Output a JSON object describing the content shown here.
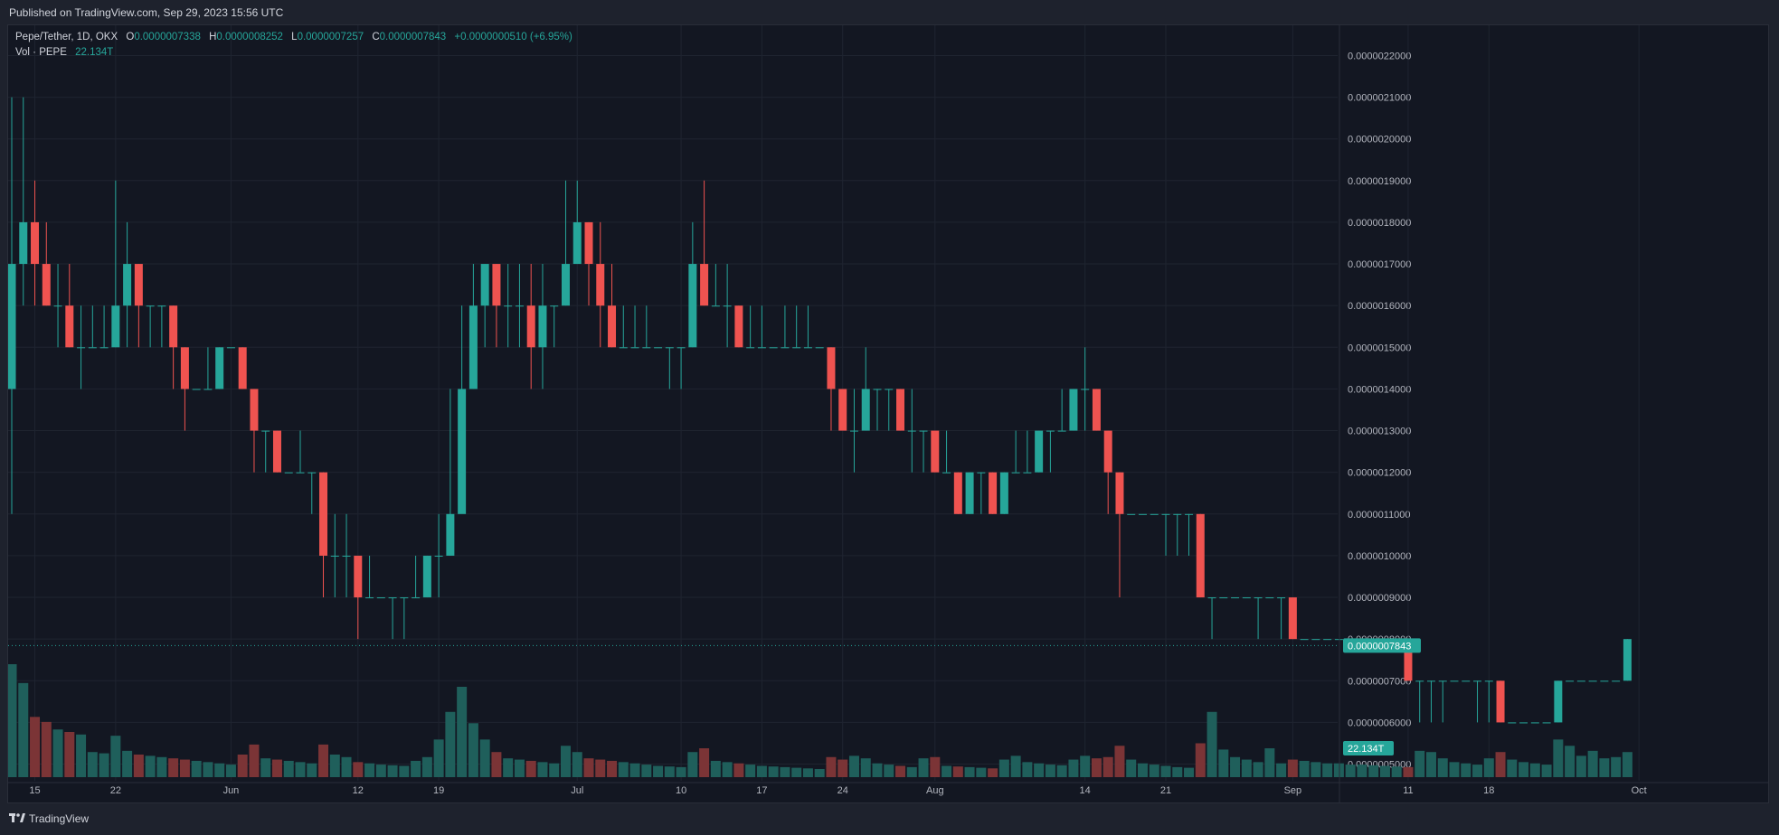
{
  "header": {
    "published_text": "Published on TradingView.com, Sep 29, 2023 15:56 UTC"
  },
  "legend": {
    "symbol": "Pepe/Tether, 1D, OKX",
    "open_label": "O",
    "open_value": "0.0000007338",
    "high_label": "H",
    "high_value": "0.0000008252",
    "low_label": "L",
    "low_value": "0.0000007257",
    "close_label": "C",
    "close_value": "0.0000007843",
    "change_value": "+0.0000000510 (+6.95%)",
    "vol_label": "Vol · PEPE",
    "vol_value": "22.134T"
  },
  "footer": {
    "brand": "TradingView"
  },
  "colors": {
    "up": "#26a69a",
    "down": "#ef5350",
    "up_volume": "#1f5f5b",
    "down_volume": "#7b3436",
    "background": "#131722",
    "grid": "#1f2430"
  },
  "chart_data": {
    "type": "candlestick",
    "ylim": [
      4.6e-07,
      2.2725e-06
    ],
    "y_ticks": [
      "0.0000005000",
      "0.0000006000",
      "0.0000007000",
      "0.0000008000",
      "0.0000009000",
      "0.0000010000",
      "0.0000011000",
      "0.0000012000",
      "0.0000013000",
      "0.0000014000",
      "0.0000015000",
      "0.0000016000",
      "0.0000017000",
      "0.0000018000",
      "0.0000019000",
      "0.0000020000",
      "0.0000021000",
      "0.0000022000"
    ],
    "x_ticks": [
      {
        "label": "15",
        "index": 2
      },
      {
        "label": "22",
        "index": 9
      },
      {
        "label": "Jun",
        "index": 19
      },
      {
        "label": "12",
        "index": 30
      },
      {
        "label": "19",
        "index": 37
      },
      {
        "label": "Jul",
        "index": 49
      },
      {
        "label": "10",
        "index": 58
      },
      {
        "label": "17",
        "index": 65
      },
      {
        "label": "24",
        "index": 72
      },
      {
        "label": "Aug",
        "index": 80
      },
      {
        "label": "14",
        "index": 93
      },
      {
        "label": "21",
        "index": 100
      },
      {
        "label": "Sep",
        "index": 111
      },
      {
        "label": "11",
        "index": 121
      },
      {
        "label": "18",
        "index": 128
      },
      {
        "label": "Oct",
        "index": 141
      }
    ],
    "last_price_label": "0.0000007843",
    "last_volume_label": "22.134T",
    "candles": [
      [
        1.4e-06,
        1.7e-06,
        2.1e-06,
        1.1e-06,
        900
      ],
      [
        1.7e-06,
        1.8e-06,
        2.1e-06,
        1.6e-06,
        750
      ],
      [
        1.8e-06,
        1.7e-06,
        1.9e-06,
        1.6e-06,
        480
      ],
      [
        1.7e-06,
        1.6e-06,
        1.8e-06,
        1.6e-06,
        440
      ],
      [
        1.6e-06,
        1.6e-06,
        1.7e-06,
        1.5e-06,
        380
      ],
      [
        1.6e-06,
        1.5e-06,
        1.7e-06,
        1.5e-06,
        360
      ],
      [
        1.5e-06,
        1.5e-06,
        1.6e-06,
        1.4e-06,
        340
      ],
      [
        1.5e-06,
        1.5e-06,
        1.6e-06,
        1.5e-06,
        200
      ],
      [
        1.5e-06,
        1.5e-06,
        1.6e-06,
        1.5e-06,
        190
      ],
      [
        1.5e-06,
        1.6e-06,
        1.9e-06,
        1.5e-06,
        330
      ],
      [
        1.6e-06,
        1.7e-06,
        1.8e-06,
        1.5e-06,
        210
      ],
      [
        1.7e-06,
        1.6e-06,
        1.7e-06,
        1.5e-06,
        180
      ],
      [
        1.6e-06,
        1.6e-06,
        1.6e-06,
        1.5e-06,
        170
      ],
      [
        1.6e-06,
        1.6e-06,
        1.6e-06,
        1.5e-06,
        160
      ],
      [
        1.6e-06,
        1.5e-06,
        1.6e-06,
        1.4e-06,
        150
      ],
      [
        1.5e-06,
        1.4e-06,
        1.5e-06,
        1.3e-06,
        140
      ],
      [
        1.4e-06,
        1.4e-06,
        1.4e-06,
        1.4e-06,
        130
      ],
      [
        1.4e-06,
        1.4e-06,
        1.5e-06,
        1.4e-06,
        120
      ],
      [
        1.4e-06,
        1.5e-06,
        1.5e-06,
        1.4e-06,
        110
      ],
      [
        1.5e-06,
        1.5e-06,
        1.5e-06,
        1.5e-06,
        100
      ],
      [
        1.5e-06,
        1.4e-06,
        1.5e-06,
        1.4e-06,
        180
      ],
      [
        1.4e-06,
        1.3e-06,
        1.4e-06,
        1.2e-06,
        260
      ],
      [
        1.3e-06,
        1.3e-06,
        1.3e-06,
        1.2e-06,
        150
      ],
      [
        1.3e-06,
        1.2e-06,
        1.3e-06,
        1.2e-06,
        140
      ],
      [
        1.2e-06,
        1.2e-06,
        1.2e-06,
        1.2e-06,
        130
      ],
      [
        1.2e-06,
        1.2e-06,
        1.3e-06,
        1.2e-06,
        120
      ],
      [
        1.2e-06,
        1.2e-06,
        1.2e-06,
        1.1e-06,
        110
      ],
      [
        1.2e-06,
        1e-06,
        1.2e-06,
        9e-07,
        260
      ],
      [
        1e-06,
        1e-06,
        1.1e-06,
        9e-07,
        180
      ],
      [
        1e-06,
        1e-06,
        1.1e-06,
        9e-07,
        160
      ],
      [
        1e-06,
        9e-07,
        1e-06,
        8e-07,
        120
      ],
      [
        9e-07,
        9e-07,
        1e-06,
        9e-07,
        110
      ],
      [
        9e-07,
        9e-07,
        9e-07,
        9e-07,
        100
      ],
      [
        9e-07,
        9e-07,
        9e-07,
        8e-07,
        95
      ],
      [
        9e-07,
        9e-07,
        9e-07,
        8e-07,
        90
      ],
      [
        9e-07,
        9e-07,
        1e-06,
        9e-07,
        130
      ],
      [
        9e-07,
        1e-06,
        1e-06,
        9e-07,
        160
      ],
      [
        1e-06,
        1e-06,
        1.1e-06,
        9e-07,
        300
      ],
      [
        1e-06,
        1.1e-06,
        1.4e-06,
        1e-06,
        520
      ],
      [
        1.1e-06,
        1.4e-06,
        1.6e-06,
        1.3e-06,
        720
      ],
      [
        1.4e-06,
        1.6e-06,
        1.7e-06,
        1.4e-06,
        430
      ],
      [
        1.6e-06,
        1.7e-06,
        1.7e-06,
        1.5e-06,
        300
      ],
      [
        1.7e-06,
        1.6e-06,
        1.7e-06,
        1.5e-06,
        200
      ],
      [
        1.6e-06,
        1.6e-06,
        1.7e-06,
        1.5e-06,
        150
      ],
      [
        1.6e-06,
        1.6e-06,
        1.7e-06,
        1.5e-06,
        140
      ],
      [
        1.6e-06,
        1.5e-06,
        1.7e-06,
        1.4e-06,
        130
      ],
      [
        1.5e-06,
        1.6e-06,
        1.7e-06,
        1.4e-06,
        120
      ],
      [
        1.6e-06,
        1.6e-06,
        1.6e-06,
        1.5e-06,
        110
      ],
      [
        1.6e-06,
        1.7e-06,
        1.9e-06,
        1.6e-06,
        250
      ],
      [
        1.7e-06,
        1.8e-06,
        1.9e-06,
        1.7e-06,
        200
      ],
      [
        1.8e-06,
        1.7e-06,
        1.8e-06,
        1.6e-06,
        150
      ],
      [
        1.7e-06,
        1.6e-06,
        1.8e-06,
        1.5e-06,
        140
      ],
      [
        1.6e-06,
        1.5e-06,
        1.7e-06,
        1.5e-06,
        130
      ],
      [
        1.5e-06,
        1.5e-06,
        1.6e-06,
        1.5e-06,
        120
      ],
      [
        1.5e-06,
        1.5e-06,
        1.6e-06,
        1.5e-06,
        110
      ],
      [
        1.5e-06,
        1.5e-06,
        1.6e-06,
        1.5e-06,
        100
      ],
      [
        1.5e-06,
        1.5e-06,
        1.5e-06,
        1.5e-06,
        90
      ],
      [
        1.5e-06,
        1.5e-06,
        1.5e-06,
        1.4e-06,
        85
      ],
      [
        1.5e-06,
        1.5e-06,
        1.5e-06,
        1.4e-06,
        80
      ],
      [
        1.5e-06,
        1.7e-06,
        1.8e-06,
        1.5e-06,
        200
      ],
      [
        1.7e-06,
        1.6e-06,
        1.9e-06,
        1.6e-06,
        230
      ],
      [
        1.6e-06,
        1.6e-06,
        1.7e-06,
        1.6e-06,
        130
      ],
      [
        1.6e-06,
        1.6e-06,
        1.7e-06,
        1.5e-06,
        120
      ],
      [
        1.6e-06,
        1.5e-06,
        1.6e-06,
        1.5e-06,
        110
      ],
      [
        1.5e-06,
        1.5e-06,
        1.6e-06,
        1.5e-06,
        100
      ],
      [
        1.5e-06,
        1.5e-06,
        1.6e-06,
        1.5e-06,
        90
      ],
      [
        1.5e-06,
        1.5e-06,
        1.5e-06,
        1.5e-06,
        85
      ],
      [
        1.5e-06,
        1.5e-06,
        1.6e-06,
        1.5e-06,
        80
      ],
      [
        1.5e-06,
        1.5e-06,
        1.6e-06,
        1.5e-06,
        75
      ],
      [
        1.5e-06,
        1.5e-06,
        1.6e-06,
        1.5e-06,
        70
      ],
      [
        1.5e-06,
        1.5e-06,
        1.5e-06,
        1.5e-06,
        65
      ],
      [
        1.5e-06,
        1.4e-06,
        1.5e-06,
        1.3e-06,
        160
      ],
      [
        1.4e-06,
        1.3e-06,
        1.4e-06,
        1.3e-06,
        140
      ],
      [
        1.3e-06,
        1.3e-06,
        1.4e-06,
        1.2e-06,
        170
      ],
      [
        1.3e-06,
        1.4e-06,
        1.5e-06,
        1.3e-06,
        150
      ],
      [
        1.4e-06,
        1.4e-06,
        1.4e-06,
        1.3e-06,
        110
      ],
      [
        1.4e-06,
        1.4e-06,
        1.4e-06,
        1.3e-06,
        100
      ],
      [
        1.4e-06,
        1.3e-06,
        1.4e-06,
        1.3e-06,
        90
      ],
      [
        1.3e-06,
        1.3e-06,
        1.4e-06,
        1.2e-06,
        80
      ],
      [
        1.3e-06,
        1.3e-06,
        1.3e-06,
        1.2e-06,
        150
      ],
      [
        1.3e-06,
        1.2e-06,
        1.3e-06,
        1.2e-06,
        160
      ],
      [
        1.2e-06,
        1.2e-06,
        1.3e-06,
        1.2e-06,
        90
      ],
      [
        1.2e-06,
        1.1e-06,
        1.2e-06,
        1.1e-06,
        85
      ],
      [
        1.1e-06,
        1.2e-06,
        1.2e-06,
        1.1e-06,
        80
      ],
      [
        1.2e-06,
        1.2e-06,
        1.2e-06,
        1.1e-06,
        75
      ],
      [
        1.2e-06,
        1.1e-06,
        1.2e-06,
        1.1e-06,
        70
      ],
      [
        1.1e-06,
        1.2e-06,
        1.2e-06,
        1.1e-06,
        140
      ],
      [
        1.2e-06,
        1.2e-06,
        1.3e-06,
        1.2e-06,
        170
      ],
      [
        1.2e-06,
        1.2e-06,
        1.3e-06,
        1.2e-06,
        120
      ],
      [
        1.2e-06,
        1.3e-06,
        1.3e-06,
        1.2e-06,
        110
      ],
      [
        1.3e-06,
        1.3e-06,
        1.3e-06,
        1.2e-06,
        100
      ],
      [
        1.3e-06,
        1.3e-06,
        1.4e-06,
        1.3e-06,
        95
      ],
      [
        1.3e-06,
        1.4e-06,
        1.4e-06,
        1.3e-06,
        140
      ],
      [
        1.4e-06,
        1.4e-06,
        1.5e-06,
        1.3e-06,
        170
      ],
      [
        1.4e-06,
        1.3e-06,
        1.4e-06,
        1.3e-06,
        150
      ],
      [
        1.3e-06,
        1.2e-06,
        1.3e-06,
        1.1e-06,
        160
      ],
      [
        1.2e-06,
        1.1e-06,
        1.2e-06,
        9e-07,
        250
      ],
      [
        1.1e-06,
        1.1e-06,
        1.1e-06,
        1.1e-06,
        140
      ],
      [
        1.1e-06,
        1.1e-06,
        1.1e-06,
        1.1e-06,
        110
      ],
      [
        1.1e-06,
        1.1e-06,
        1.1e-06,
        1.1e-06,
        100
      ],
      [
        1.1e-06,
        1.1e-06,
        1.1e-06,
        1e-06,
        90
      ],
      [
        1.1e-06,
        1.1e-06,
        1.1e-06,
        1e-06,
        80
      ],
      [
        1.1e-06,
        1.1e-06,
        1.1e-06,
        1e-06,
        75
      ],
      [
        1.1e-06,
        9e-07,
        1.1e-06,
        9e-07,
        270
      ],
      [
        9e-07,
        9e-07,
        9e-07,
        8e-07,
        520
      ],
      [
        9e-07,
        9e-07,
        9e-07,
        9e-07,
        220
      ],
      [
        9e-07,
        9e-07,
        9e-07,
        9e-07,
        160
      ],
      [
        9e-07,
        9e-07,
        9e-07,
        9e-07,
        140
      ],
      [
        9e-07,
        9e-07,
        9e-07,
        8e-07,
        120
      ],
      [
        9e-07,
        9e-07,
        9e-07,
        9e-07,
        230
      ],
      [
        9e-07,
        9e-07,
        9e-07,
        8e-07,
        110
      ],
      [
        9e-07,
        8e-07,
        9e-07,
        8e-07,
        140
      ],
      [
        8e-07,
        8e-07,
        8e-07,
        8e-07,
        130
      ],
      [
        8e-07,
        8e-07,
        8e-07,
        8e-07,
        120
      ],
      [
        8e-07,
        8e-07,
        8e-07,
        8e-07,
        110
      ],
      [
        8e-07,
        8e-07,
        8e-07,
        8e-07,
        110
      ],
      [
        8e-07,
        8e-07,
        8e-07,
        8e-07,
        100
      ],
      [
        8e-07,
        8e-07,
        8e-07,
        8e-07,
        100
      ],
      [
        8e-07,
        8e-07,
        8e-07,
        8e-07,
        95
      ],
      [
        8e-07,
        8e-07,
        8e-07,
        8e-07,
        90
      ],
      [
        8e-07,
        8e-07,
        8e-07,
        8e-07,
        85
      ],
      [
        8e-07,
        7e-07,
        8e-07,
        7e-07,
        80
      ],
      [
        7e-07,
        7e-07,
        7e-07,
        6e-07,
        210
      ],
      [
        7e-07,
        7e-07,
        7e-07,
        6e-07,
        200
      ],
      [
        7e-07,
        7e-07,
        7e-07,
        6e-07,
        150
      ],
      [
        7e-07,
        7e-07,
        7e-07,
        7e-07,
        120
      ],
      [
        7e-07,
        7e-07,
        7e-07,
        7e-07,
        110
      ],
      [
        7e-07,
        7e-07,
        7e-07,
        6e-07,
        100
      ],
      [
        7e-07,
        7e-07,
        7e-07,
        6e-07,
        150
      ],
      [
        7e-07,
        6e-07,
        7e-07,
        6e-07,
        200
      ],
      [
        6e-07,
        6e-07,
        6e-07,
        6e-07,
        140
      ],
      [
        6e-07,
        6e-07,
        6e-07,
        6e-07,
        120
      ],
      [
        6e-07,
        6e-07,
        6e-07,
        6e-07,
        110
      ],
      [
        6e-07,
        6e-07,
        6e-07,
        6e-07,
        100
      ],
      [
        6e-07,
        7e-07,
        7e-07,
        6e-07,
        300
      ],
      [
        7e-07,
        7e-07,
        7e-07,
        7e-07,
        250
      ],
      [
        7e-07,
        7e-07,
        7e-07,
        7e-07,
        170
      ],
      [
        7e-07,
        7e-07,
        7e-07,
        7e-07,
        210
      ],
      [
        7e-07,
        7e-07,
        7e-07,
        7e-07,
        150
      ],
      [
        7e-07,
        7e-07,
        7e-07,
        7e-07,
        160
      ],
      [
        7e-07,
        8e-07,
        8e-07,
        7e-07,
        200
      ]
    ]
  }
}
